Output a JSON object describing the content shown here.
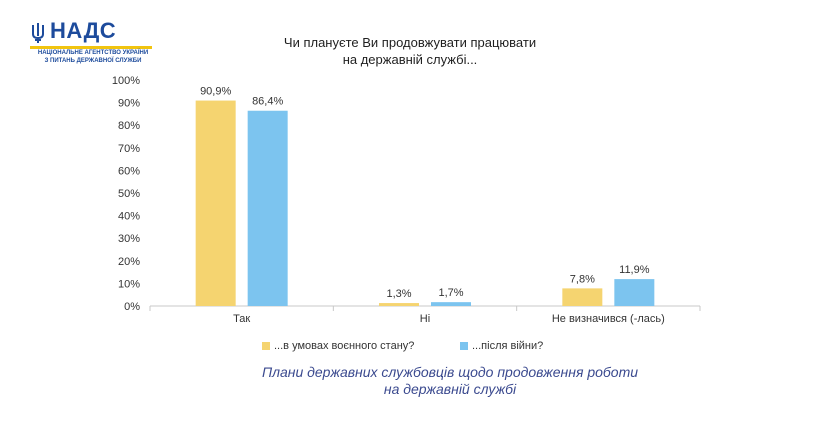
{
  "logo": {
    "name": "НАДС",
    "subtitle_line1": "НАЦІОНАЛЬНЕ АГЕНТСТВО УКРАЇНИ",
    "subtitle_line2": "З ПИТАНЬ ДЕРЖАВНОЇ СЛУЖБИ"
  },
  "caption": {
    "line1": "Плани державних службовців щодо продовження роботи",
    "line2": "на державній службі"
  },
  "colors": {
    "series1": "#f5d470",
    "series2": "#7cc4ef",
    "axis": "#c8c8c8",
    "logo_blue": "#1d4b9c",
    "logo_yellow": "#f1c40f"
  },
  "chart_data": {
    "type": "bar",
    "title_line1": "Чи плануєте Ви продовжувати працювати",
    "title_line2": "на державній службі...",
    "categories": [
      "Так",
      "Ні",
      "Не визначився (-лась)"
    ],
    "series": [
      {
        "name": "...в умовах воєнного стану?",
        "values": [
          90.9,
          1.3,
          7.8
        ],
        "labels": [
          "90,9%",
          "1,3%",
          "7,8%"
        ]
      },
      {
        "name": "...після війни?",
        "values": [
          86.4,
          1.7,
          11.9
        ],
        "labels": [
          "86,4%",
          "1,7%",
          "11,9%"
        ]
      }
    ],
    "ylim": [
      0,
      100
    ],
    "yticks": [
      "0%",
      "10%",
      "20%",
      "30%",
      "40%",
      "50%",
      "60%",
      "70%",
      "80%",
      "90%",
      "100%"
    ],
    "grid": false,
    "legend_position": "bottom"
  }
}
